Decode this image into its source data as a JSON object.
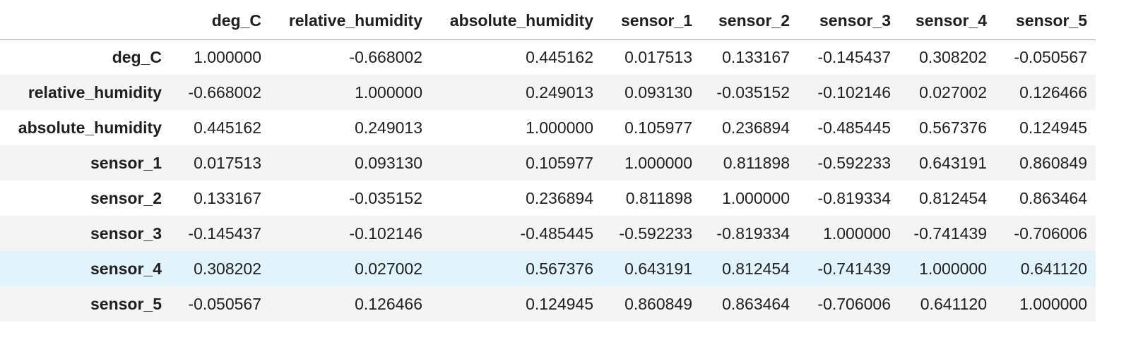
{
  "table": {
    "corner": "",
    "columns": [
      "deg_C",
      "relative_humidity",
      "absolute_humidity",
      "sensor_1",
      "sensor_2",
      "sensor_3",
      "sensor_4",
      "sensor_5"
    ],
    "rows": [
      {
        "index": "deg_C",
        "cells": [
          "1.000000",
          "-0.668002",
          "0.445162",
          "0.017513",
          "0.133167",
          "-0.145437",
          "0.308202",
          "-0.050567"
        ]
      },
      {
        "index": "relative_humidity",
        "cells": [
          "-0.668002",
          "1.000000",
          "0.249013",
          "0.093130",
          "-0.035152",
          "-0.102146",
          "0.027002",
          "0.126466"
        ]
      },
      {
        "index": "absolute_humidity",
        "cells": [
          "0.445162",
          "0.249013",
          "1.000000",
          "0.105977",
          "0.236894",
          "-0.485445",
          "0.567376",
          "0.124945"
        ]
      },
      {
        "index": "sensor_1",
        "cells": [
          "0.017513",
          "0.093130",
          "0.105977",
          "1.000000",
          "0.811898",
          "-0.592233",
          "0.643191",
          "0.860849"
        ]
      },
      {
        "index": "sensor_2",
        "cells": [
          "0.133167",
          "-0.035152",
          "0.236894",
          "0.811898",
          "1.000000",
          "-0.819334",
          "0.812454",
          "0.863464"
        ]
      },
      {
        "index": "sensor_3",
        "cells": [
          "-0.145437",
          "-0.102146",
          "-0.485445",
          "-0.592233",
          "-0.819334",
          "1.000000",
          "-0.741439",
          "-0.706006"
        ]
      },
      {
        "index": "sensor_4",
        "cells": [
          "0.308202",
          "0.027002",
          "0.567376",
          "0.643191",
          "0.812454",
          "-0.741439",
          "1.000000",
          "0.641120"
        ]
      },
      {
        "index": "sensor_5",
        "cells": [
          "-0.050567",
          "0.126466",
          "0.124945",
          "0.860849",
          "0.863464",
          "-0.706006",
          "0.641120",
          "1.000000"
        ]
      }
    ],
    "hovered_row_index": 6
  },
  "colors": {
    "stripe": "#f4f4f4",
    "hover": "#e1f3fb",
    "header_rule": "#9a9a9a",
    "text": "#1f1f1f"
  }
}
